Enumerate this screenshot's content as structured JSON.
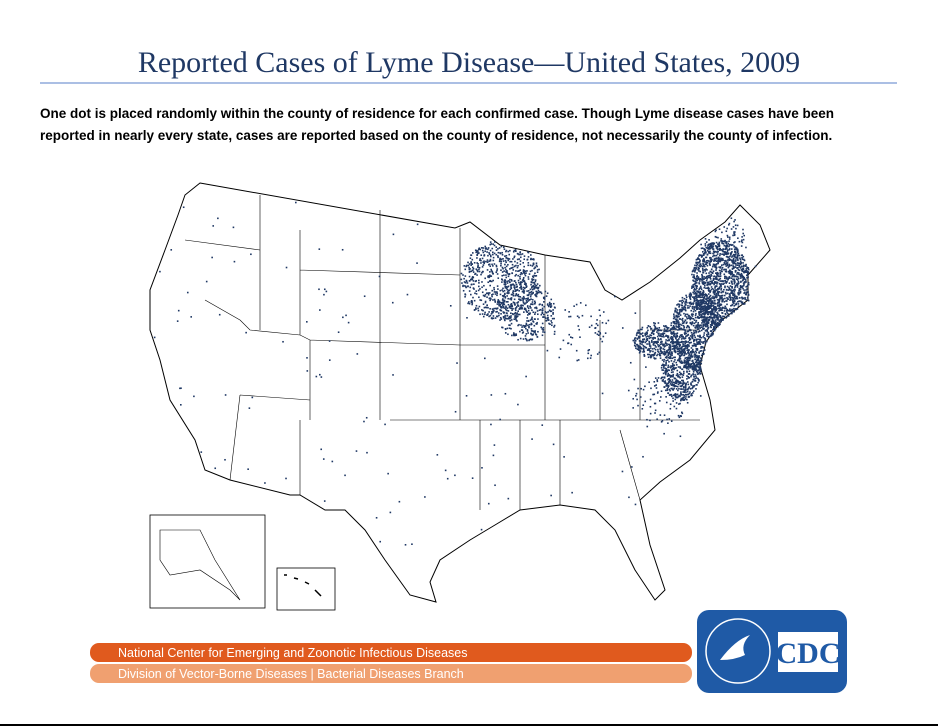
{
  "title": "Reported Cases of Lyme Disease—United States, 2009",
  "description": [
    "One dot is placed randomly within the county of residence for each confirmed case. Though Lyme disease cases have been",
    "reported in nearly every state, cases are reported based on the county of residence, not necessarily the county of infection."
  ],
  "footer": {
    "center": "National Center for Emerging and Zoonotic Infectious Diseases",
    "division": "Division of Vector-Borne Diseases | Bacterial Diseases Branch"
  },
  "logo": {
    "text": "CDC"
  }
}
